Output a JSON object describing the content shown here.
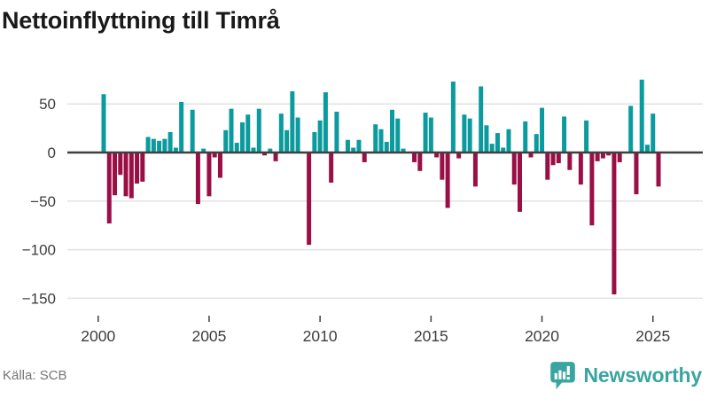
{
  "header": {
    "title": "Nettoinflyttning till Timrå"
  },
  "footer": {
    "source": "Källa: SCB",
    "brand": "Newsworthy"
  },
  "colors": {
    "positive": "#0b9b9e",
    "negative": "#9a0f45",
    "grid": "#e2e2e2",
    "zero_line": "#3f3f3f",
    "axis_text": "#3d3d3d",
    "brand_teal": "#3aa5a0",
    "title_text": "#191919",
    "source_text": "#767676"
  },
  "chart_data": {
    "type": "bar",
    "title": "Nettoinflyttning till Timrå",
    "ylabel": "",
    "xlabel": "",
    "unit": "net migration per quarter (persons)",
    "frequency": "quarterly",
    "start": "2000-Q2",
    "end": "2025-Q2",
    "values": [
      60,
      -73,
      -44,
      -23,
      -45,
      -47,
      -32,
      -30,
      16,
      14,
      12,
      14,
      21,
      5,
      52,
      0,
      44,
      -53,
      4,
      -45,
      -5,
      -26,
      23,
      45,
      10,
      31,
      39,
      5,
      45,
      -3,
      4,
      -9,
      40,
      23,
      63,
      36,
      -1,
      -95,
      21,
      33,
      62,
      -31,
      42,
      0,
      13,
      5,
      13,
      -10,
      0,
      29,
      24,
      11,
      44,
      35,
      4,
      0,
      -10,
      -19,
      41,
      36,
      -5,
      -28,
      -57,
      73,
      -6,
      39,
      35,
      -35,
      68,
      28,
      9,
      20,
      5,
      24,
      -33,
      -61,
      32,
      -5,
      19,
      46,
      -28,
      -13,
      -11,
      37,
      -18,
      0,
      -33,
      33,
      -75,
      -9,
      -6,
      -3,
      -146,
      -10,
      0,
      48,
      -43,
      75,
      8,
      40,
      -35
    ],
    "y_ticks": [
      50,
      0,
      -50,
      -100,
      -150
    ],
    "y_tick_labels": [
      "50",
      "0",
      "−50",
      "−100",
      "−150"
    ],
    "x_ticks": [
      2000,
      2005,
      2010,
      2015,
      2020,
      2025
    ],
    "x_tick_labels": [
      "2000",
      "2005",
      "2010",
      "2015",
      "2020",
      "2025"
    ],
    "ylim": [
      -160,
      80
    ],
    "grid": true,
    "legend": false
  }
}
